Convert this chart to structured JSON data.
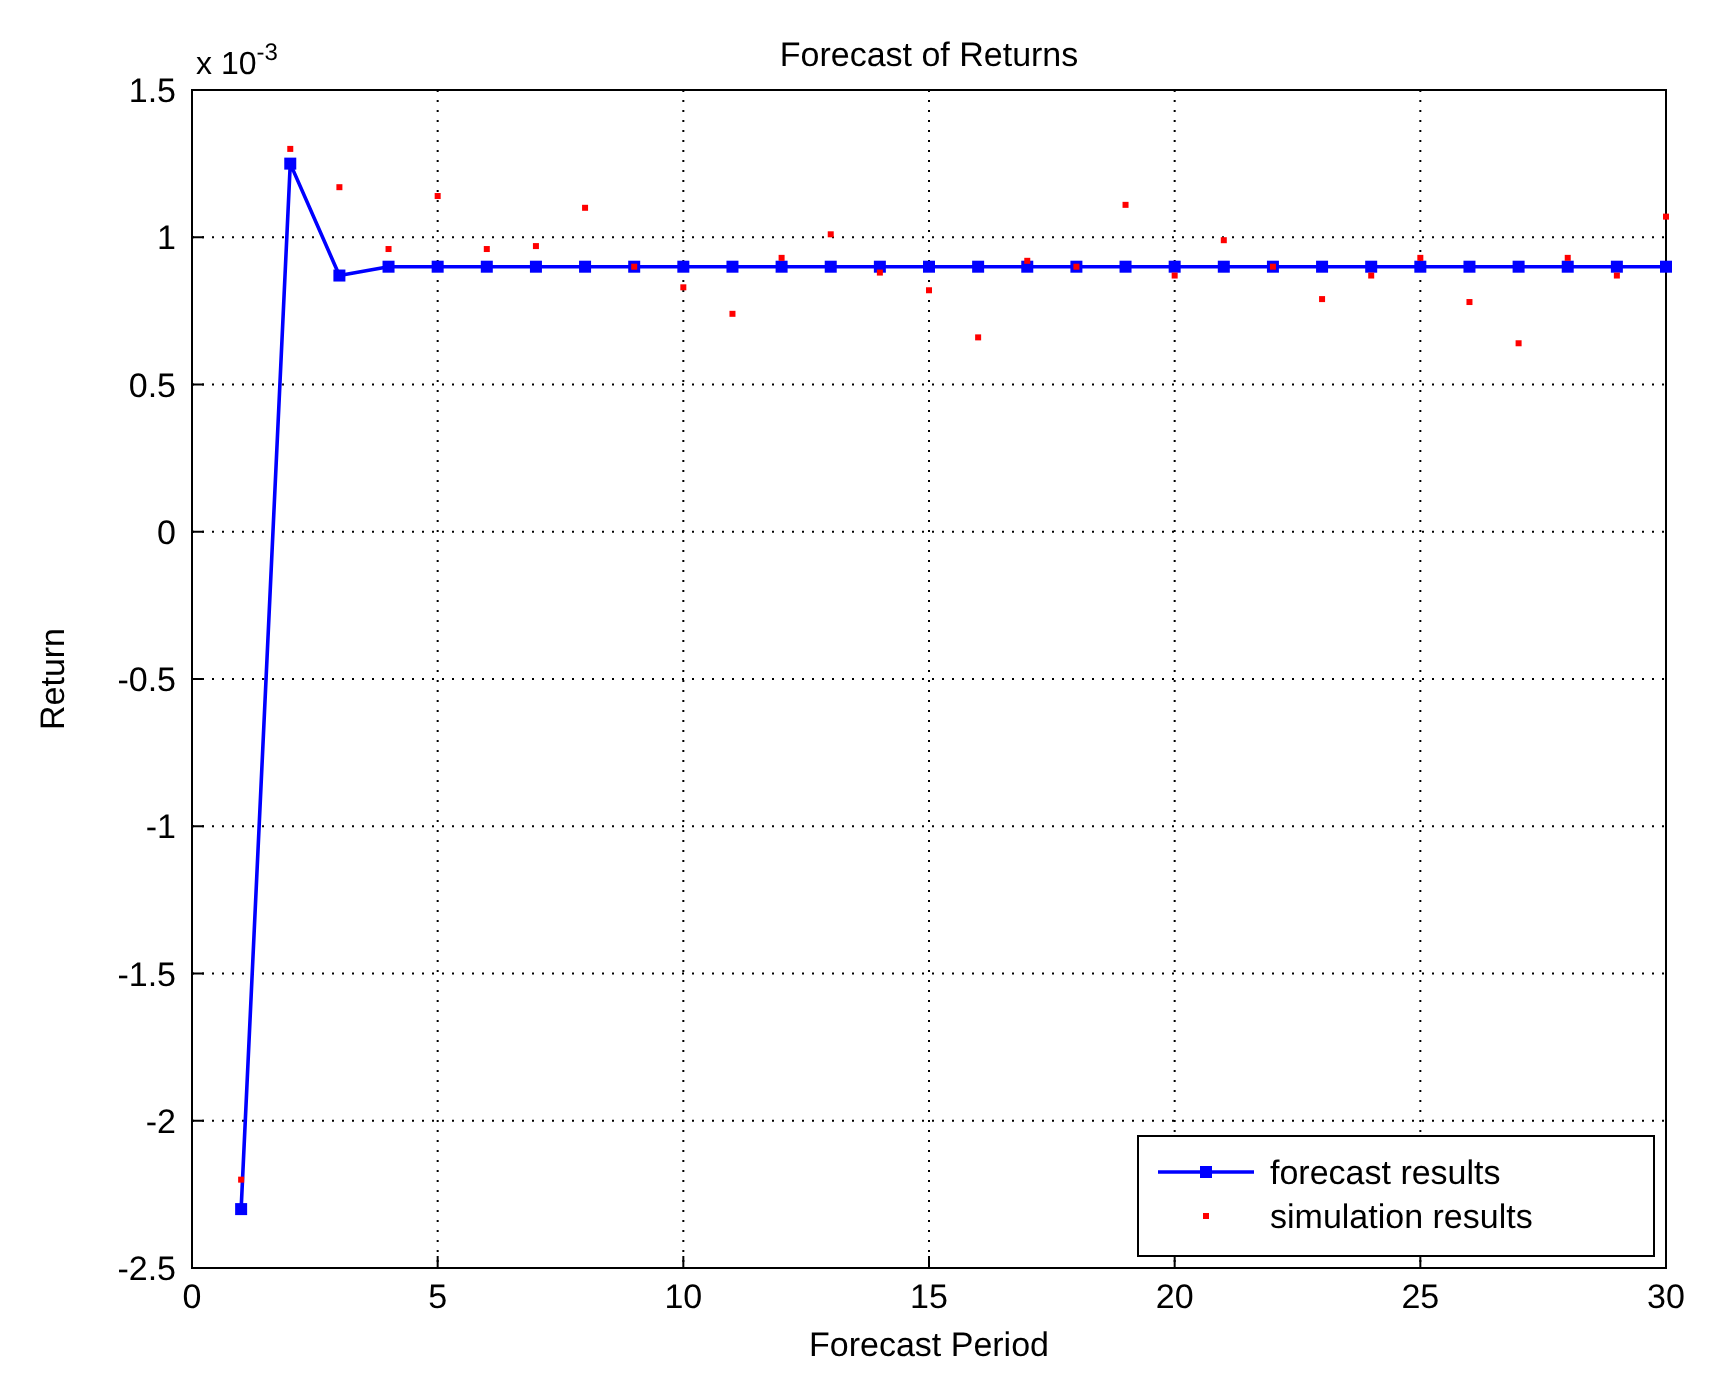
{
  "chart_data": {
    "type": "line",
    "title": "Forecast of Returns",
    "xlabel": "Forecast Period",
    "ylabel": "Return",
    "annotations": [
      "x 10$^{-3}$"
    ],
    "xlim": [
      0,
      30
    ],
    "xticks": [
      0,
      5,
      10,
      15,
      20,
      25,
      30
    ],
    "ylim": [
      -2.5,
      1.5
    ],
    "yticks": [
      -2.5,
      -2,
      -1.5,
      -1,
      -0.5,
      0,
      0.5,
      1,
      1.5
    ],
    "grid": true,
    "legend": "bottom right",
    "series": [
      {
        "name": "forecast results",
        "color": "#0000ff",
        "marker": "square",
        "x": [
          1,
          2,
          3,
          4,
          5,
          6,
          7,
          8,
          9,
          10,
          11,
          12,
          13,
          14,
          15,
          16,
          17,
          18,
          19,
          20,
          21,
          22,
          23,
          24,
          25,
          26,
          27,
          28,
          29,
          30
        ],
        "values": [
          -2.3,
          1.25,
          0.87,
          0.9,
          0.9,
          0.9,
          0.9,
          0.9,
          0.9,
          0.9,
          0.9,
          0.9,
          0.9,
          0.9,
          0.9,
          0.9,
          0.9,
          0.9,
          0.9,
          0.9,
          0.9,
          0.9,
          0.9,
          0.9,
          0.9,
          0.9,
          0.9,
          0.9,
          0.9,
          0.9
        ]
      },
      {
        "name": "simulation results",
        "color": "#ff0000",
        "type": "scatter",
        "marker": "square",
        "x": [
          1,
          2,
          3,
          4,
          5,
          6,
          7,
          8,
          9,
          10,
          11,
          12,
          13,
          14,
          15,
          16,
          17,
          18,
          19,
          20,
          21,
          22,
          23,
          24,
          25,
          26,
          27,
          28,
          29,
          30
        ],
        "values": [
          -2.2,
          1.3,
          1.17,
          0.96,
          1.14,
          0.96,
          0.97,
          1.1,
          0.9,
          0.83,
          0.74,
          0.93,
          1.01,
          0.88,
          0.82,
          0.66,
          0.92,
          0.9,
          1.11,
          0.87,
          0.99,
          0.9,
          0.79,
          0.87,
          0.93,
          0.78,
          0.64,
          0.93,
          0.87,
          1.07
        ]
      }
    ]
  }
}
